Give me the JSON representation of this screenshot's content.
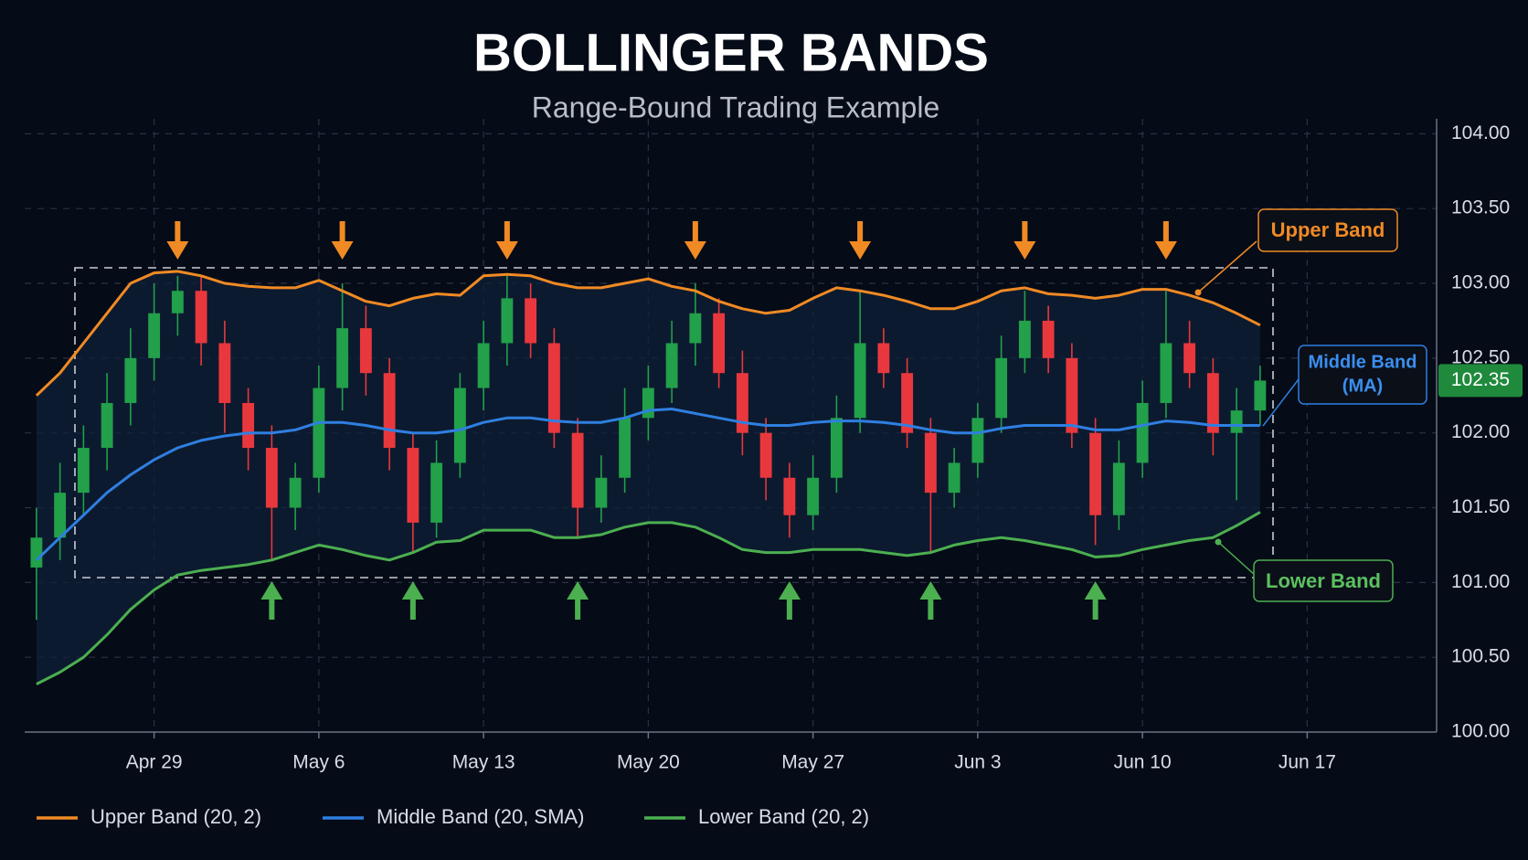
{
  "chart_data": {
    "type": "candlestick",
    "title": "BOLLINGER BANDS",
    "subtitle": "Range-Bound Trading Example",
    "categories": [
      null,
      null,
      null,
      null,
      null,
      "Apr 29",
      null,
      null,
      null,
      null,
      null,
      null,
      "May 6",
      null,
      null,
      null,
      null,
      null,
      null,
      "May 13",
      null,
      null,
      null,
      null,
      null,
      null,
      "May 20",
      null,
      null,
      null,
      null,
      null,
      null,
      "May 27",
      null,
      null,
      null,
      null,
      null,
      null,
      "Jun 3",
      null,
      null,
      null,
      null,
      null,
      null,
      "Jun 10",
      null,
      null,
      null,
      null,
      null,
      null,
      "Jun 17",
      null,
      null,
      null,
      null,
      null
    ],
    "ylim": [
      100,
      104.1
    ],
    "yticks": [
      {
        "value": 100,
        "label": "100.00"
      },
      {
        "value": 100.5,
        "label": "100.50"
      },
      {
        "value": 101,
        "label": "101.00"
      },
      {
        "value": 101.5,
        "label": "101.50"
      },
      {
        "value": 102,
        "label": "102.00"
      },
      {
        "value": 102.5,
        "label": "102.50"
      },
      {
        "value": 103,
        "label": "103.00"
      },
      {
        "value": 103.5,
        "label": "103.50"
      },
      {
        "value": 104,
        "label": "104.00"
      }
    ],
    "grid": true,
    "candles": {
      "up_color": "#22a04a",
      "down_color": "#e8383d",
      "open": [
        101.1,
        101.3,
        101.6,
        101.9,
        102.2,
        102.5,
        102.8,
        102.95,
        102.6,
        102.2,
        101.9,
        101.5,
        101.7,
        102.3,
        102.7,
        102.4,
        101.9,
        101.4,
        101.8,
        102.3,
        102.6,
        102.9,
        102.6,
        102.0,
        101.5,
        101.7,
        102.1,
        102.3,
        102.6,
        102.8,
        102.4,
        102.0,
        101.7,
        101.45,
        101.7,
        102.1,
        102.6,
        102.4,
        102.0,
        101.6,
        101.8,
        102.1,
        102.5,
        102.75,
        102.5,
        102.0,
        101.45,
        101.8,
        102.2,
        102.6,
        102.4,
        102.0,
        102.15,
        null,
        null,
        null,
        null,
        null,
        null,
        null
      ],
      "high": [
        101.5,
        101.8,
        102.05,
        102.4,
        102.7,
        103.0,
        103.05,
        103.05,
        102.75,
        102.3,
        102.05,
        101.8,
        102.45,
        103.0,
        102.85,
        102.5,
        102.0,
        101.95,
        102.4,
        102.75,
        103.05,
        103.0,
        102.7,
        102.1,
        101.85,
        102.3,
        102.45,
        102.75,
        103.0,
        102.9,
        102.55,
        102.1,
        101.8,
        101.85,
        102.25,
        102.95,
        102.7,
        102.5,
        102.1,
        101.9,
        102.2,
        102.65,
        102.95,
        102.85,
        102.6,
        102.1,
        101.95,
        102.35,
        102.95,
        102.75,
        102.5,
        102.3,
        102.45,
        null,
        null,
        null,
        null,
        null,
        null,
        null
      ],
      "low": [
        100.75,
        101.15,
        101.45,
        101.75,
        102.05,
        102.35,
        102.65,
        102.45,
        102.0,
        101.75,
        101.15,
        101.35,
        101.6,
        102.15,
        102.25,
        101.75,
        101.2,
        101.3,
        101.7,
        102.15,
        102.45,
        102.5,
        101.9,
        101.3,
        101.4,
        101.6,
        101.95,
        102.2,
        102.45,
        102.3,
        101.85,
        101.55,
        101.3,
        101.35,
        101.6,
        102.0,
        102.3,
        101.9,
        101.2,
        101.5,
        101.7,
        102.0,
        102.4,
        102.4,
        101.9,
        101.25,
        101.35,
        101.7,
        102.1,
        102.3,
        101.85,
        101.55,
        102.05,
        null,
        null,
        null,
        null,
        null,
        null,
        null
      ],
      "close": [
        101.3,
        101.6,
        101.9,
        102.2,
        102.5,
        102.8,
        102.95,
        102.6,
        102.2,
        101.9,
        101.5,
        101.7,
        102.3,
        102.7,
        102.4,
        101.9,
        101.4,
        101.8,
        102.3,
        102.6,
        102.9,
        102.6,
        102.0,
        101.5,
        101.7,
        102.1,
        102.3,
        102.6,
        102.8,
        102.4,
        102.0,
        101.7,
        101.45,
        101.7,
        102.1,
        102.6,
        102.4,
        102.0,
        101.6,
        101.8,
        102.1,
        102.5,
        102.75,
        102.5,
        102.0,
        101.45,
        101.8,
        102.2,
        102.6,
        102.4,
        102.0,
        102.15,
        102.35,
        null,
        null,
        null,
        null,
        null,
        null,
        null
      ]
    },
    "series": [
      {
        "name": "Upper Band (20, 2)",
        "color": "#f08a24",
        "values": [
          102.25,
          102.4,
          102.6,
          102.8,
          103.0,
          103.07,
          103.08,
          103.05,
          103.0,
          102.98,
          102.97,
          102.97,
          103.02,
          102.95,
          102.88,
          102.85,
          102.9,
          102.93,
          102.92,
          103.05,
          103.06,
          103.05,
          103.0,
          102.97,
          102.97,
          103.0,
          103.03,
          102.98,
          102.95,
          102.88,
          102.83,
          102.8,
          102.82,
          102.9,
          102.97,
          102.95,
          102.92,
          102.88,
          102.83,
          102.83,
          102.88,
          102.95,
          102.97,
          102.93,
          102.92,
          102.9,
          102.92,
          102.96,
          102.96,
          102.92,
          102.87,
          102.8,
          102.72,
          null,
          null,
          null,
          null,
          null,
          null,
          null
        ]
      },
      {
        "name": "Middle Band (20, SMA)",
        "color": "#2f7fe0",
        "values": [
          101.15,
          101.3,
          101.45,
          101.6,
          101.72,
          101.82,
          101.9,
          101.95,
          101.98,
          102.0,
          102.0,
          102.02,
          102.07,
          102.07,
          102.05,
          102.02,
          102.0,
          102.0,
          102.02,
          102.07,
          102.1,
          102.1,
          102.08,
          102.07,
          102.07,
          102.1,
          102.15,
          102.16,
          102.13,
          102.1,
          102.07,
          102.05,
          102.05,
          102.07,
          102.08,
          102.08,
          102.07,
          102.05,
          102.02,
          102.0,
          102.0,
          102.03,
          102.05,
          102.05,
          102.05,
          102.02,
          102.02,
          102.05,
          102.08,
          102.07,
          102.05,
          102.05,
          102.05,
          null,
          null,
          null,
          null,
          null,
          null,
          null
        ]
      },
      {
        "name": "Lower Band (20, 2)",
        "color": "#4caf50",
        "values": [
          100.32,
          100.4,
          100.5,
          100.65,
          100.82,
          100.95,
          101.05,
          101.08,
          101.1,
          101.12,
          101.15,
          101.2,
          101.25,
          101.22,
          101.18,
          101.15,
          101.2,
          101.27,
          101.28,
          101.35,
          101.35,
          101.35,
          101.3,
          101.3,
          101.32,
          101.37,
          101.4,
          101.4,
          101.37,
          101.3,
          101.22,
          101.2,
          101.2,
          101.22,
          101.22,
          101.22,
          101.2,
          101.18,
          101.2,
          101.25,
          101.28,
          101.3,
          101.28,
          101.25,
          101.22,
          101.17,
          101.18,
          101.22,
          101.25,
          101.28,
          101.3,
          101.38,
          101.47,
          null,
          null,
          null,
          null,
          null,
          null,
          null
        ]
      }
    ],
    "last_price": 102.35,
    "annotations": {
      "upper": "Upper Band",
      "middle": [
        "Middle Band",
        "(MA)"
      ],
      "lower": "Lower Band"
    }
  }
}
